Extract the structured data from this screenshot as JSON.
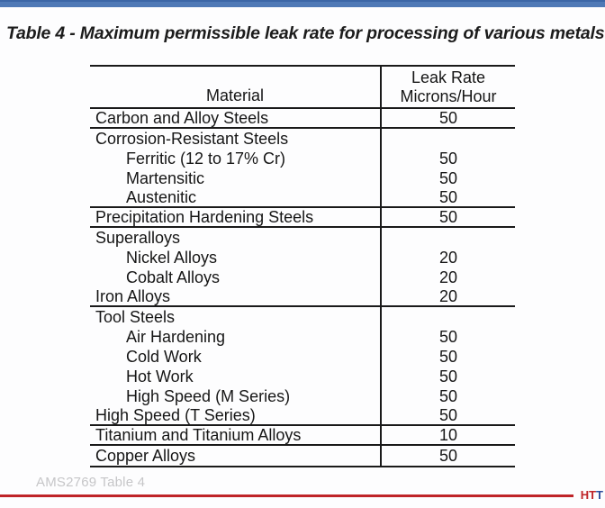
{
  "title": "Table 4 - Maximum permissible leak rate for processing of various metals",
  "table": {
    "headers": {
      "material": "Material",
      "leak_rate_line1": "Leak Rate",
      "leak_rate_line2": "Microns/Hour"
    },
    "rows": [
      {
        "label": "Carbon and Alloy Steels",
        "value": "50",
        "indent": false,
        "separator_below": true
      },
      {
        "label": "Corrosion-Resistant Steels",
        "value": "",
        "indent": false,
        "separator_below": false
      },
      {
        "label": "Ferritic (12 to 17% Cr)",
        "value": "50",
        "indent": true,
        "separator_below": false
      },
      {
        "label": "Martensitic",
        "value": "50",
        "indent": true,
        "separator_below": false
      },
      {
        "label": "Austenitic",
        "value": "50",
        "indent": true,
        "separator_below": true
      },
      {
        "label": "Precipitation Hardening Steels",
        "value": "50",
        "indent": false,
        "separator_below": true
      },
      {
        "label": "Superalloys",
        "value": "",
        "indent": false,
        "separator_below": false
      },
      {
        "label": "Nickel Alloys",
        "value": "20",
        "indent": true,
        "separator_below": false
      },
      {
        "label": "Cobalt Alloys",
        "value": "20",
        "indent": true,
        "separator_below": false
      },
      {
        "label": "Iron Alloys",
        "value": "20",
        "indent": false,
        "separator_below": true
      },
      {
        "label": "Tool Steels",
        "value": "",
        "indent": false,
        "separator_below": false
      },
      {
        "label": "Air Hardening",
        "value": "50",
        "indent": true,
        "separator_below": false
      },
      {
        "label": "Cold Work",
        "value": "50",
        "indent": true,
        "separator_below": false
      },
      {
        "label": "Hot Work",
        "value": "50",
        "indent": true,
        "separator_below": false
      },
      {
        "label": "High Speed (M Series)",
        "value": "50",
        "indent": true,
        "separator_below": false
      },
      {
        "label": "High Speed (T Series)",
        "value": "50",
        "indent": false,
        "separator_below": true
      },
      {
        "label": "Titanium and Titanium Alloys",
        "value": "10",
        "indent": false,
        "separator_below": true
      },
      {
        "label": "Copper Alloys",
        "value": "50",
        "indent": false,
        "separator_below": false
      }
    ]
  },
  "footer": {
    "reference": "AMS2769 Table 4",
    "logo_part1": "HT",
    "logo_part2": "T"
  },
  "colors": {
    "top_bar_blue": "#4f79b6",
    "accent_red": "#bf2428",
    "logo_blue": "#2c4c9c",
    "footer_text_gray": "#c6c6c8",
    "table_line": "#1a1a1a"
  }
}
